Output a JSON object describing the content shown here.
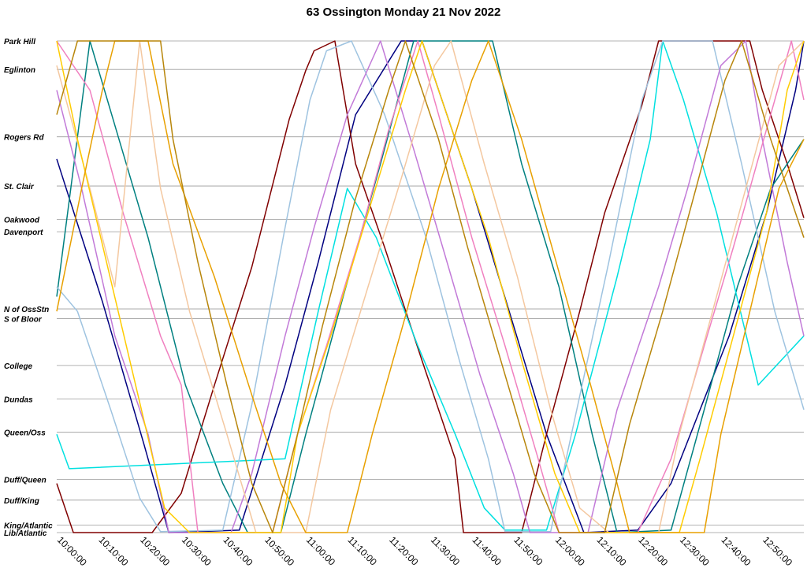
{
  "chart_data": {
    "type": "line",
    "title": "63 Ossington Monday 21 Nov 2022",
    "xlabel": "",
    "ylabel": "",
    "xlim": [
      "10:00:00",
      "13:00:00"
    ],
    "x_ticks": [
      "10:00:00",
      "10:10:00",
      "10:20:00",
      "10:30:00",
      "10:40:00",
      "10:50:00",
      "11:00:00",
      "11:10:00",
      "11:20:00",
      "11:30:00",
      "11:40:00",
      "11:50:00",
      "12:00:00",
      "12:10:00",
      "12:20:00",
      "12:30:00",
      "12:40:00",
      "12:50:00"
    ],
    "stops": [
      {
        "name": "Park Hill",
        "pos": 0.0
      },
      {
        "name": "Eglinton",
        "pos": 0.058
      },
      {
        "name": "Rogers Rd",
        "pos": 0.195
      },
      {
        "name": "St. Clair",
        "pos": 0.295
      },
      {
        "name": "Oakwood",
        "pos": 0.363
      },
      {
        "name": "Davenport",
        "pos": 0.388
      },
      {
        "name": "N of OssStn",
        "pos": 0.545
      },
      {
        "name": "S of Bloor",
        "pos": 0.565
      },
      {
        "name": "College",
        "pos": 0.66
      },
      {
        "name": "Dundas",
        "pos": 0.728
      },
      {
        "name": "Queen/Oss",
        "pos": 0.796
      },
      {
        "name": "Duff/Queen",
        "pos": 0.892
      },
      {
        "name": "Duff/King",
        "pos": 0.934
      },
      {
        "name": "King/Atlantic",
        "pos": 0.985
      },
      {
        "name": "Lib/Atlantic",
        "pos": 1.0
      }
    ],
    "grid": true,
    "legend": "none",
    "series": [
      {
        "color": "#000080",
        "points": [
          [
            0,
            0.24
          ],
          [
            11,
            0.53
          ],
          [
            21,
            0.82
          ],
          [
            27,
            1.0
          ],
          [
            44,
            0.995
          ],
          [
            55,
            0.7
          ],
          [
            63,
            0.45
          ],
          [
            72,
            0.15
          ],
          [
            83,
            0.0
          ],
          [
            88,
            0.0
          ],
          [
            100,
            0.3
          ],
          [
            109,
            0.55
          ],
          [
            118,
            0.8
          ],
          [
            127,
            1.0
          ],
          [
            140,
            0.995
          ],
          [
            148,
            0.9
          ],
          [
            155,
            0.75
          ],
          [
            162,
            0.6
          ],
          [
            171,
            0.35
          ],
          [
            178,
            0.1
          ],
          [
            180,
            0.0
          ]
        ]
      },
      {
        "color": "#800000",
        "points": [
          [
            0,
            0.9
          ],
          [
            4,
            1.0
          ],
          [
            23,
            1.0
          ],
          [
            30,
            0.92
          ],
          [
            38,
            0.7
          ],
          [
            47,
            0.46
          ],
          [
            56,
            0.16
          ],
          [
            60,
            0.06
          ],
          [
            62,
            0.02
          ],
          [
            67,
            0.0
          ],
          [
            72,
            0.25
          ],
          [
            79,
            0.42
          ],
          [
            88,
            0.65
          ],
          [
            96,
            0.85
          ],
          [
            98,
            1.0
          ],
          [
            112,
            1.0
          ],
          [
            118,
            0.8
          ],
          [
            126,
            0.55
          ],
          [
            132,
            0.35
          ],
          [
            141,
            0.13
          ],
          [
            145,
            0.0
          ],
          [
            167,
            0.0
          ],
          [
            170,
            0.1
          ],
          [
            176,
            0.25
          ],
          [
            180,
            0.36
          ]
        ]
      },
      {
        "color": "#008080",
        "points": [
          [
            0,
            0.52
          ],
          [
            8,
            0.0
          ],
          [
            15,
            0.2
          ],
          [
            22,
            0.4
          ],
          [
            31,
            0.7
          ],
          [
            40,
            0.9
          ],
          [
            46,
            1.0
          ],
          [
            54,
            1.0
          ],
          [
            60,
            0.8
          ],
          [
            69,
            0.52
          ],
          [
            78,
            0.25
          ],
          [
            86,
            0.0
          ],
          [
            105,
            0.0
          ],
          [
            112,
            0.25
          ],
          [
            121,
            0.5
          ],
          [
            129,
            0.8
          ],
          [
            135,
            1.0
          ],
          [
            148,
            0.995
          ],
          [
            156,
            0.75
          ],
          [
            164,
            0.5
          ],
          [
            172,
            0.3
          ],
          [
            180,
            0.2
          ]
        ]
      },
      {
        "color": "#00e0e0",
        "points": [
          [
            0,
            0.8
          ],
          [
            3,
            0.87
          ],
          [
            55,
            0.85
          ],
          [
            63,
            0.55
          ],
          [
            70,
            0.3
          ],
          [
            77,
            0.4
          ],
          [
            87,
            0.62
          ],
          [
            96,
            0.8
          ],
          [
            103,
            0.95
          ],
          [
            108,
            0.995
          ],
          [
            118,
            0.995
          ],
          [
            125,
            0.8
          ],
          [
            135,
            0.48
          ],
          [
            143,
            0.2
          ],
          [
            146,
            0.0
          ],
          [
            151,
            0.12
          ],
          [
            159,
            0.35
          ],
          [
            169,
            0.7
          ],
          [
            180,
            0.6
          ]
        ]
      },
      {
        "color": "#9ec3e0",
        "points": [
          [
            0,
            0.5
          ],
          [
            5,
            0.55
          ],
          [
            13,
            0.75
          ],
          [
            20,
            0.93
          ],
          [
            25,
            0.998
          ],
          [
            40,
            0.995
          ],
          [
            47,
            0.74
          ],
          [
            55,
            0.38
          ],
          [
            61,
            0.12
          ],
          [
            65,
            0.02
          ],
          [
            71,
            0.0
          ],
          [
            79,
            0.15
          ],
          [
            89,
            0.4
          ],
          [
            97,
            0.65
          ],
          [
            104,
            0.85
          ],
          [
            108,
            0.998
          ],
          [
            119,
            0.998
          ],
          [
            124,
            0.8
          ],
          [
            133,
            0.45
          ],
          [
            141,
            0.12
          ],
          [
            146,
            0.0
          ],
          [
            158,
            0.0
          ],
          [
            165,
            0.25
          ],
          [
            173,
            0.55
          ],
          [
            180,
            0.75
          ]
        ]
      },
      {
        "color": "#c27ad8",
        "points": [
          [
            0,
            0.1
          ],
          [
            6,
            0.3
          ],
          [
            14,
            0.6
          ],
          [
            22,
            0.8
          ],
          [
            27,
            1.0
          ],
          [
            42,
            1.0
          ],
          [
            47,
            0.88
          ],
          [
            55,
            0.6
          ],
          [
            62,
            0.38
          ],
          [
            70,
            0.15
          ],
          [
            78,
            0.0
          ],
          [
            86,
            0.22
          ],
          [
            93,
            0.42
          ],
          [
            102,
            0.68
          ],
          [
            110,
            0.88
          ],
          [
            114,
            1.0
          ],
          [
            128,
            1.0
          ],
          [
            135,
            0.75
          ],
          [
            145,
            0.5
          ],
          [
            152,
            0.3
          ],
          [
            160,
            0.05
          ],
          [
            166,
            0.0
          ],
          [
            170,
            0.2
          ],
          [
            176,
            0.45
          ],
          [
            180,
            0.6
          ]
        ]
      },
      {
        "color": "#f080c0",
        "points": [
          [
            0,
            0.0
          ],
          [
            8,
            0.1
          ],
          [
            16,
            0.35
          ],
          [
            25,
            0.6
          ],
          [
            30,
            0.7
          ],
          [
            34,
            1.0
          ],
          [
            52,
            1.0
          ],
          [
            58,
            0.8
          ],
          [
            65,
            0.62
          ],
          [
            73,
            0.4
          ],
          [
            80,
            0.18
          ],
          [
            87,
            0.0
          ],
          [
            92,
            0.15
          ],
          [
            100,
            0.4
          ],
          [
            108,
            0.62
          ],
          [
            116,
            0.85
          ],
          [
            121,
            1.0
          ],
          [
            140,
            1.0
          ],
          [
            148,
            0.85
          ],
          [
            156,
            0.62
          ],
          [
            163,
            0.42
          ],
          [
            171,
            0.18
          ],
          [
            177,
            0.0
          ],
          [
            180,
            0.12
          ]
        ]
      },
      {
        "color": "#f4c8a0",
        "points": [
          [
            0,
            0.05
          ],
          [
            8,
            0.3
          ],
          [
            14,
            0.5
          ],
          [
            20,
            0.0
          ],
          [
            25,
            0.3
          ],
          [
            32,
            0.55
          ],
          [
            41,
            0.8
          ],
          [
            48,
            1.0
          ],
          [
            60,
            1.0
          ],
          [
            66,
            0.75
          ],
          [
            75,
            0.5
          ],
          [
            83,
            0.28
          ],
          [
            91,
            0.05
          ],
          [
            95,
            0.0
          ],
          [
            103,
            0.25
          ],
          [
            111,
            0.48
          ],
          [
            119,
            0.75
          ],
          [
            126,
            0.95
          ],
          [
            133,
            1.0
          ],
          [
            145,
            1.0
          ],
          [
            150,
            0.8
          ],
          [
            158,
            0.55
          ],
          [
            166,
            0.3
          ],
          [
            174,
            0.05
          ],
          [
            180,
            0.0
          ]
        ]
      },
      {
        "color": "#ffcc00",
        "points": [
          [
            0,
            0.0
          ],
          [
            5,
            0.2
          ],
          [
            12,
            0.45
          ],
          [
            19,
            0.7
          ],
          [
            26,
            0.95
          ],
          [
            32,
            1.0
          ],
          [
            54,
            1.0
          ],
          [
            58,
            0.8
          ],
          [
            66,
            0.6
          ],
          [
            75,
            0.35
          ],
          [
            84,
            0.1
          ],
          [
            88,
            0.0
          ],
          [
            96,
            0.2
          ],
          [
            104,
            0.4
          ],
          [
            112,
            0.65
          ],
          [
            120,
            0.88
          ],
          [
            126,
            1.0
          ],
          [
            150,
            1.0
          ],
          [
            155,
            0.85
          ],
          [
            163,
            0.6
          ],
          [
            171,
            0.35
          ],
          [
            176,
            0.1
          ],
          [
            180,
            0.0
          ]
        ]
      },
      {
        "color": "#e8a000",
        "points": [
          [
            0,
            0.55
          ],
          [
            6,
            0.3
          ],
          [
            11,
            0.1
          ],
          [
            14,
            0.0
          ],
          [
            22,
            0.0
          ],
          [
            28,
            0.25
          ],
          [
            38,
            0.48
          ],
          [
            47,
            0.72
          ],
          [
            54,
            0.9
          ],
          [
            60,
            1.0
          ],
          [
            70,
            1.0
          ],
          [
            76,
            0.8
          ],
          [
            84,
            0.56
          ],
          [
            92,
            0.3
          ],
          [
            100,
            0.08
          ],
          [
            104,
            0.0
          ],
          [
            112,
            0.2
          ],
          [
            120,
            0.44
          ],
          [
            128,
            0.68
          ],
          [
            135,
            0.9
          ],
          [
            138,
            1.0
          ],
          [
            156,
            1.0
          ],
          [
            160,
            0.8
          ],
          [
            167,
            0.55
          ],
          [
            174,
            0.3
          ],
          [
            180,
            0.2
          ]
        ]
      },
      {
        "color": "#b8860b",
        "points": [
          [
            0,
            0.15
          ],
          [
            5,
            0.0
          ],
          [
            25,
            0.0
          ],
          [
            28,
            0.2
          ],
          [
            34,
            0.45
          ],
          [
            41,
            0.7
          ],
          [
            47,
            0.9
          ],
          [
            52,
            1.0
          ],
          [
            58,
            0.8
          ],
          [
            64,
            0.58
          ],
          [
            72,
            0.32
          ],
          [
            80,
            0.1
          ],
          [
            84,
            0.0
          ],
          [
            92,
            0.2
          ],
          [
            99,
            0.42
          ],
          [
            107,
            0.65
          ],
          [
            115,
            0.88
          ],
          [
            121,
            1.0
          ],
          [
            132,
            1.0
          ],
          [
            138,
            0.78
          ],
          [
            146,
            0.55
          ],
          [
            154,
            0.3
          ],
          [
            161,
            0.08
          ],
          [
            165,
            0.0
          ],
          [
            172,
            0.2
          ],
          [
            180,
            0.4
          ]
        ]
      }
    ]
  }
}
